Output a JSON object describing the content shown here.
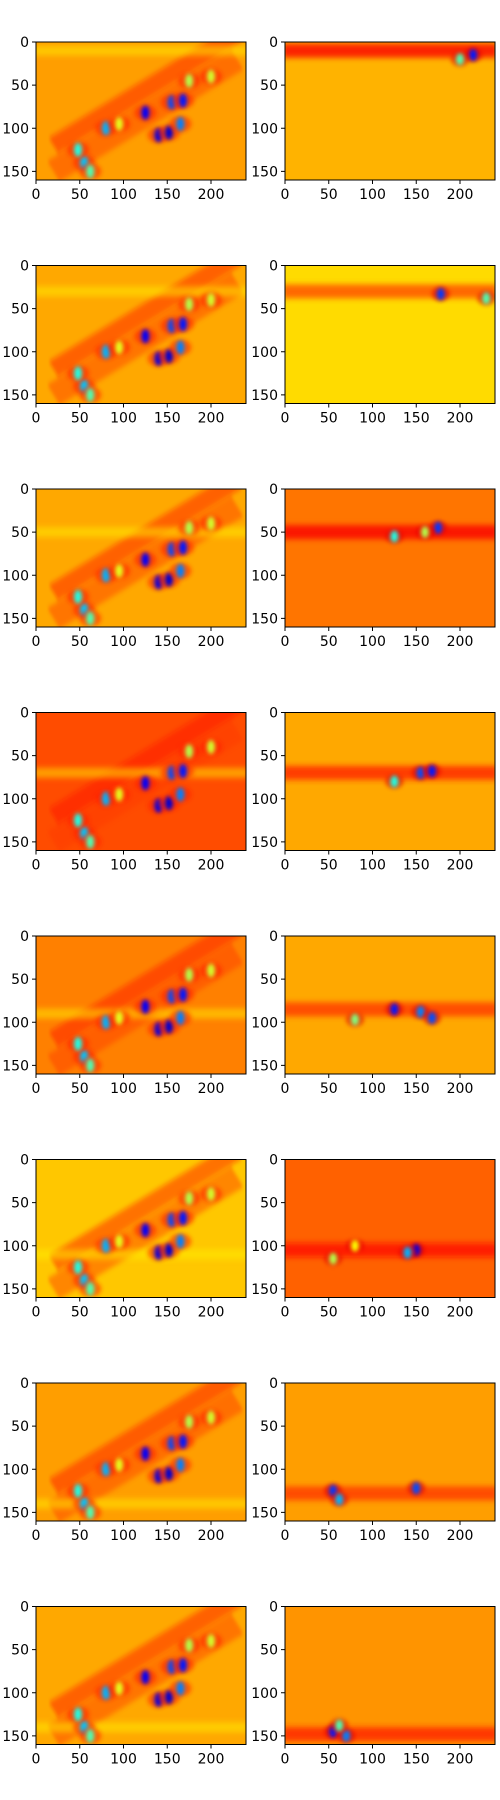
{
  "chart_data": {
    "type": "heatmap",
    "colormap": "jet",
    "grid": false,
    "rows": 8,
    "cols": 2,
    "y_axis_inverted": true,
    "xlim": [
      0,
      240
    ],
    "ylim": [
      160,
      0
    ],
    "x_ticks": [
      0,
      50,
      100,
      150,
      200
    ],
    "y_ticks": [
      0,
      50,
      100,
      150
    ],
    "left_column_blobs": [
      {
        "x": 55,
        "y": 140,
        "v": 0.32
      },
      {
        "x": 48,
        "y": 125,
        "v": 0.4
      },
      {
        "x": 62,
        "y": 150,
        "v": 0.45
      },
      {
        "x": 80,
        "y": 100,
        "v": 0.3
      },
      {
        "x": 95,
        "y": 95,
        "v": 0.6
      },
      {
        "x": 125,
        "y": 82,
        "v": 0.12
      },
      {
        "x": 140,
        "y": 108,
        "v": 0.1
      },
      {
        "x": 152,
        "y": 105,
        "v": 0.08
      },
      {
        "x": 155,
        "y": 70,
        "v": 0.2
      },
      {
        "x": 168,
        "y": 68,
        "v": 0.15
      },
      {
        "x": 165,
        "y": 95,
        "v": 0.25
      },
      {
        "x": 175,
        "y": 45,
        "v": 0.55
      },
      {
        "x": 200,
        "y": 40,
        "v": 0.58
      }
    ],
    "panels": [
      {
        "row": 0,
        "col": 0,
        "bg": 0.72,
        "band_y": 10,
        "band": 0.0
      },
      {
        "row": 0,
        "col": 1,
        "bg": 0.7,
        "band_y": 10,
        "band": 0.88,
        "blobs": [
          {
            "x": 215,
            "y": 15,
            "v": 0.15
          },
          {
            "x": 200,
            "y": 20,
            "v": 0.45
          }
        ]
      },
      {
        "row": 1,
        "col": 0,
        "bg": 0.71,
        "band_y": 30,
        "band": 0.0
      },
      {
        "row": 1,
        "col": 1,
        "bg": 0.66,
        "band_y": 30,
        "band": 0.8,
        "blobs": [
          {
            "x": 178,
            "y": 33,
            "v": 0.18
          },
          {
            "x": 230,
            "y": 38,
            "v": 0.45
          }
        ]
      },
      {
        "row": 2,
        "col": 0,
        "bg": 0.71,
        "band_y": 50,
        "band": 0.0
      },
      {
        "row": 2,
        "col": 1,
        "bg": 0.76,
        "band_y": 50,
        "band": 0.88,
        "blobs": [
          {
            "x": 125,
            "y": 55,
            "v": 0.4
          },
          {
            "x": 175,
            "y": 45,
            "v": 0.18
          },
          {
            "x": 160,
            "y": 50,
            "v": 0.55
          }
        ]
      },
      {
        "row": 3,
        "col": 0,
        "bg": 0.8,
        "band_y": 70,
        "band": 0.0
      },
      {
        "row": 3,
        "col": 1,
        "bg": 0.71,
        "band_y": 70,
        "band": 0.84,
        "blobs": [
          {
            "x": 155,
            "y": 70,
            "v": 0.2
          },
          {
            "x": 168,
            "y": 68,
            "v": 0.15
          },
          {
            "x": 125,
            "y": 80,
            "v": 0.4
          }
        ]
      },
      {
        "row": 4,
        "col": 0,
        "bg": 0.75,
        "band_y": 90,
        "band": 0.0
      },
      {
        "row": 4,
        "col": 1,
        "bg": 0.71,
        "band_y": 85,
        "band": 0.82,
        "blobs": [
          {
            "x": 125,
            "y": 85,
            "v": 0.15
          },
          {
            "x": 155,
            "y": 88,
            "v": 0.25
          },
          {
            "x": 168,
            "y": 95,
            "v": 0.2
          },
          {
            "x": 80,
            "y": 97,
            "v": 0.5
          }
        ]
      },
      {
        "row": 5,
        "col": 0,
        "bg": 0.68,
        "band_y": 110,
        "band": 0.0
      },
      {
        "row": 5,
        "col": 1,
        "bg": 0.78,
        "band_y": 105,
        "band": 0.86,
        "blobs": [
          {
            "x": 150,
            "y": 105,
            "v": 0.1
          },
          {
            "x": 140,
            "y": 108,
            "v": 0.3
          },
          {
            "x": 80,
            "y": 100,
            "v": 0.62
          },
          {
            "x": 55,
            "y": 115,
            "v": 0.55
          }
        ]
      },
      {
        "row": 6,
        "col": 0,
        "bg": 0.72,
        "band_y": 140,
        "band": 0.0
      },
      {
        "row": 6,
        "col": 1,
        "bg": 0.72,
        "band_y": 128,
        "band": 0.82,
        "blobs": [
          {
            "x": 55,
            "y": 125,
            "v": 0.18
          },
          {
            "x": 62,
            "y": 135,
            "v": 0.3
          },
          {
            "x": 150,
            "y": 122,
            "v": 0.2
          }
        ]
      },
      {
        "row": 7,
        "col": 0,
        "bg": 0.71,
        "band_y": 140,
        "band": 0.0
      },
      {
        "row": 7,
        "col": 1,
        "bg": 0.73,
        "band_y": 148,
        "band": 0.84,
        "blobs": [
          {
            "x": 55,
            "y": 145,
            "v": 0.15
          },
          {
            "x": 70,
            "y": 150,
            "v": 0.25
          },
          {
            "x": 62,
            "y": 138,
            "v": 0.45
          }
        ]
      }
    ]
  }
}
